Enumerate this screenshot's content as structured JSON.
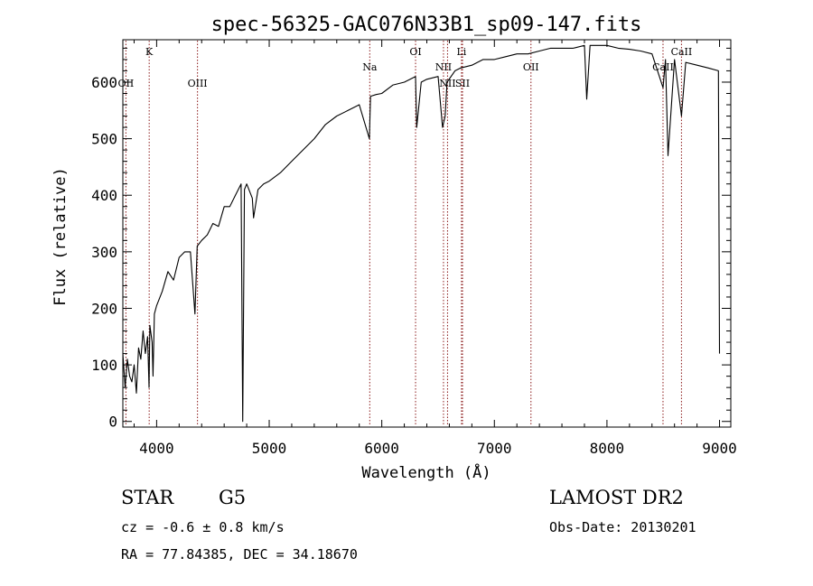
{
  "chart_data": {
    "type": "line",
    "title": "spec-56325-GAC076N33B1_sp09-147.fits",
    "xlabel": "Wavelength (Å)",
    "ylabel": "Flux (relative)",
    "xlim": [
      3700,
      9100
    ],
    "ylim": [
      -10,
      675
    ],
    "x_ticks": [
      4000,
      5000,
      6000,
      7000,
      8000,
      9000
    ],
    "y_ticks": [
      0,
      100,
      200,
      300,
      400,
      500,
      600
    ],
    "grid": false,
    "series": [
      {
        "x": [
          3700,
          3720,
          3740,
          3760,
          3780,
          3800,
          3820,
          3840,
          3860,
          3880,
          3900,
          3920,
          3933,
          3940,
          3960,
          3968,
          3980,
          4000,
          4050,
          4100,
          4150,
          4200,
          4250,
          4300,
          4340,
          4360,
          4400,
          4450,
          4500,
          4550,
          4600,
          4650,
          4700,
          4750,
          4765,
          4780,
          4800,
          4850,
          4861,
          4900,
          4950,
          5000,
          5100,
          5200,
          5300,
          5400,
          5500,
          5600,
          5700,
          5800,
          5890,
          5900,
          5950,
          6000,
          6100,
          6200,
          6300,
          6310,
          6350,
          6400,
          6500,
          6540,
          6563,
          6580,
          6650,
          6700,
          6800,
          6900,
          7000,
          7100,
          7200,
          7300,
          7400,
          7500,
          7600,
          7700,
          7800,
          7820,
          7850,
          7900,
          8000,
          8100,
          8200,
          8300,
          8400,
          8498,
          8520,
          8542,
          8600,
          8662,
          8700,
          8800,
          8900,
          8990,
          9000
        ],
        "y": [
          120,
          60,
          110,
          80,
          70,
          100,
          50,
          130,
          110,
          160,
          120,
          150,
          60,
          170,
          140,
          80,
          190,
          205,
          230,
          265,
          250,
          290,
          300,
          300,
          190,
          310,
          320,
          330,
          350,
          345,
          380,
          380,
          400,
          420,
          0,
          410,
          420,
          395,
          360,
          410,
          420,
          425,
          440,
          460,
          480,
          500,
          525,
          540,
          550,
          560,
          500,
          575,
          578,
          580,
          595,
          600,
          610,
          520,
          600,
          605,
          610,
          520,
          540,
          600,
          620,
          625,
          630,
          640,
          640,
          645,
          650,
          650,
          655,
          660,
          660,
          660,
          665,
          570,
          665,
          665,
          665,
          660,
          658,
          655,
          650,
          590,
          640,
          470,
          640,
          540,
          635,
          630,
          625,
          620,
          120
        ]
      }
    ],
    "lines": [
      {
        "label": "K",
        "x": 3934,
        "level": "top"
      },
      {
        "label": "OII",
        "x": 3727,
        "level": "mid"
      },
      {
        "label": "OIII",
        "x": 4363,
        "level": "mid"
      },
      {
        "label": "Na",
        "x": 5893,
        "level": "low"
      },
      {
        "label": "OI",
        "x": 6300,
        "level": "top"
      },
      {
        "label": "NII",
        "x": 6548,
        "level": "low"
      },
      {
        "label": "Li",
        "x": 6708,
        "level": "top"
      },
      {
        "label": "NII",
        "x": 6584,
        "level": "mid"
      },
      {
        "label": "SII",
        "x": 6717,
        "level": "mid"
      },
      {
        "label": "OII",
        "x": 7325,
        "level": "low"
      },
      {
        "label": "CaII",
        "x": 8498,
        "level": "low"
      },
      {
        "label": "CaII",
        "x": 8662,
        "level": "top"
      }
    ]
  },
  "footer": {
    "class_label": "STAR",
    "subclass_label": "G5",
    "survey_label": "LAMOST DR2",
    "cz_text": "cz = -0.6 ± 0.8 km/s",
    "obs_date_text": "Obs-Date: 20130201",
    "radec_text": "RA =  77.84385, DEC =  34.18670"
  },
  "colors": {
    "spectrum": "#000000",
    "line_marker": "#8b1a1a",
    "background": "#ffffff"
  }
}
